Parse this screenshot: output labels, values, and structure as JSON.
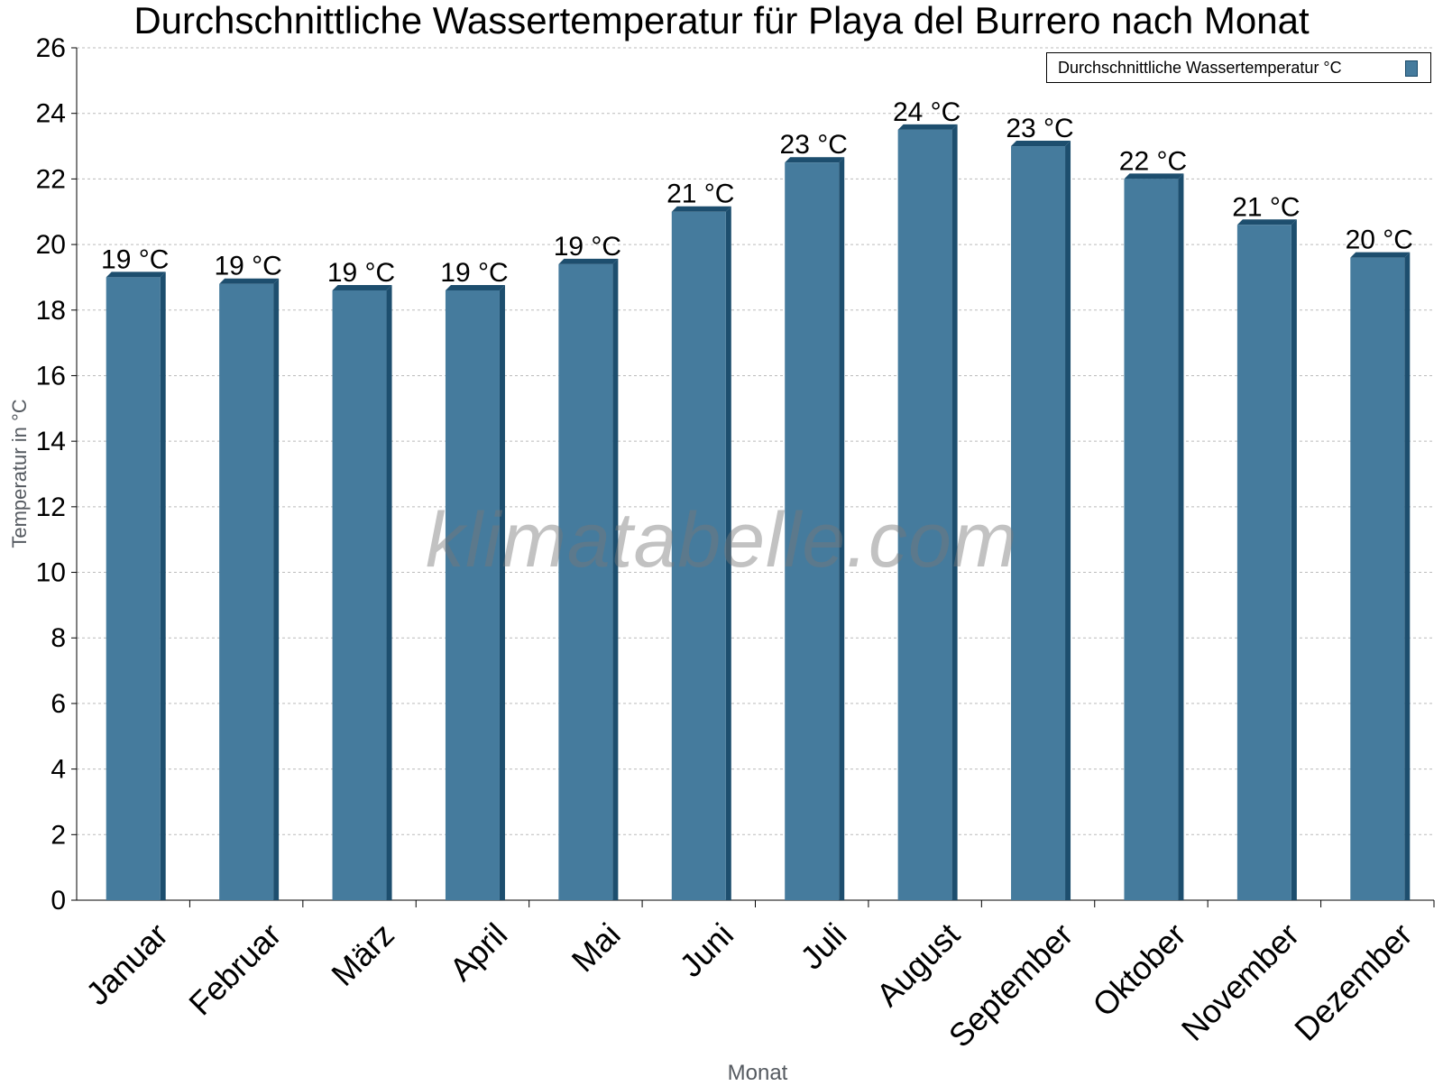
{
  "chart_data": {
    "type": "bar",
    "title": "Durchschnittliche Wassertemperatur für Playa del Burrero nach Monat",
    "xlabel": "Monat",
    "ylabel": "Temperatur in °C",
    "categories": [
      "Januar",
      "Februar",
      "März",
      "April",
      "Mai",
      "Juni",
      "Juli",
      "August",
      "September",
      "Oktober",
      "November",
      "Dezember"
    ],
    "series": [
      {
        "name": "Durchschnittliche Wassertemperatur °C",
        "values": [
          19.0,
          18.8,
          18.6,
          18.6,
          19.4,
          21.0,
          22.5,
          23.5,
          23.0,
          22.0,
          20.6,
          19.6
        ],
        "data_labels": [
          "19 °C",
          "19 °C",
          "19 °C",
          "19 °C",
          "19 °C",
          "21 °C",
          "23 °C",
          "24 °C",
          "23 °C",
          "22 °C",
          "21 °C",
          "20 °C"
        ]
      }
    ],
    "ylim": [
      0,
      26
    ],
    "yticks": [
      0,
      2,
      4,
      6,
      8,
      10,
      12,
      14,
      16,
      18,
      20,
      22,
      24,
      26
    ],
    "grid": true,
    "legend": "top-right",
    "colors": {
      "bar": "#457b9d",
      "bar_edge": "#1d4e6e",
      "grid": "#bbbbbb"
    }
  },
  "watermark": "klimatabelle.com"
}
